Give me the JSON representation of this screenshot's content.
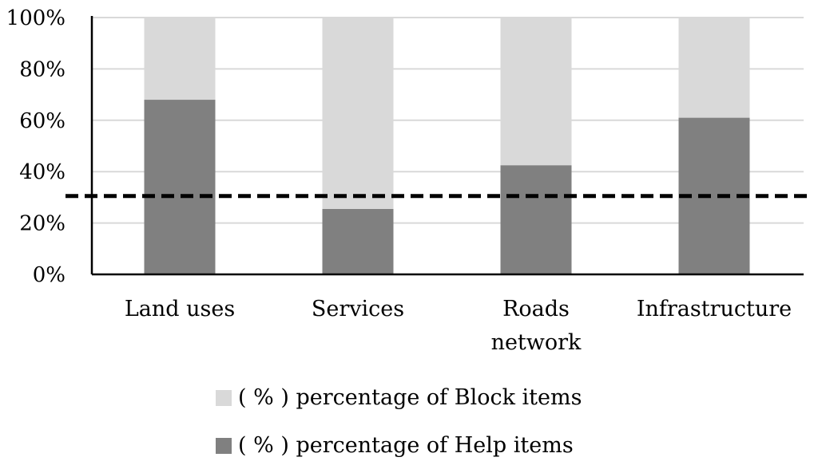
{
  "chart_data": {
    "type": "bar",
    "stacked": true,
    "categories": [
      [
        "Land uses"
      ],
      [
        "Services"
      ],
      [
        "Roads",
        "network"
      ],
      [
        "Infrastructure"
      ]
    ],
    "series": [
      {
        "name": "(%) percentage of Help items",
        "color": "#808080",
        "values": [
          68,
          25.5,
          42.5,
          61
        ]
      },
      {
        "name": "(%) percentage of Block items",
        "color": "#d9d9d9",
        "values": [
          32,
          74.5,
          57.5,
          39
        ]
      }
    ],
    "y_ticks": [
      "0%",
      "20%",
      "40%",
      "60%",
      "80%",
      "100%"
    ],
    "ylim": [
      0,
      100
    ],
    "reference_line": {
      "value": 30.5,
      "style": "dashed",
      "color": "#000000"
    },
    "grid": true,
    "legend_position": "bottom"
  },
  "legend": {
    "block_label": "( % ) percentage of Block items",
    "help_label": "( % ) percentage of Help items",
    "block_color": "#d9d9d9",
    "help_color": "#808080"
  }
}
